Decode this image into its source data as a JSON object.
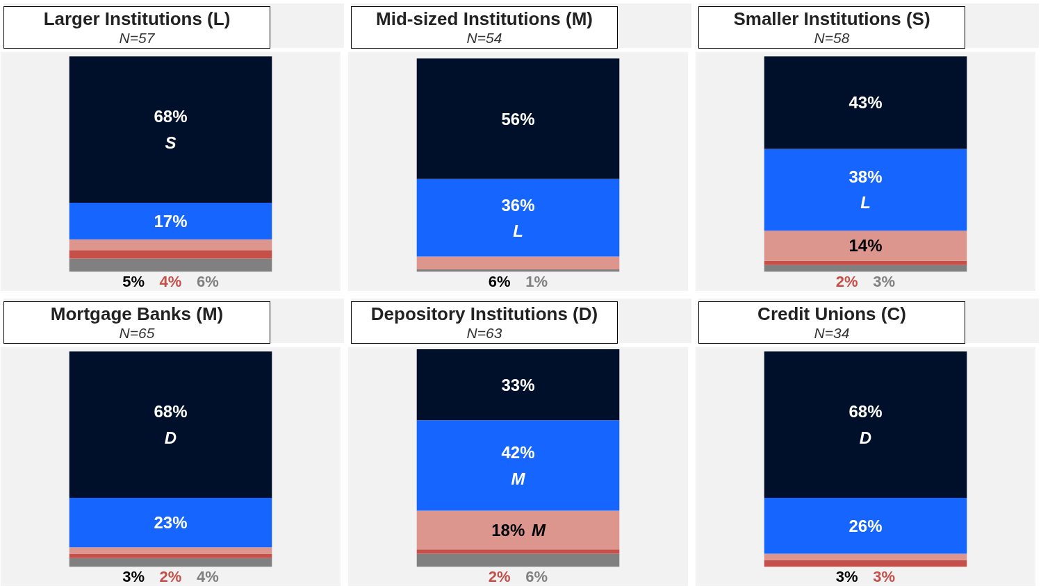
{
  "chart_data": [
    {
      "type": "bar",
      "stacked": true,
      "title": "Larger Institutions (L)",
      "subtitle": "N=57",
      "categories": [
        null
      ],
      "tick_labels": false,
      "series": [
        {
          "color": "#808080",
          "values": [
            6
          ],
          "value_labels": [
            "6%"
          ]
        },
        {
          "color": "#c5504a",
          "values": [
            4
          ],
          "value_labels": [
            "4%"
          ]
        },
        {
          "color": "#dc968e",
          "values": [
            5
          ],
          "value_labels": [
            "5%"
          ]
        },
        {
          "color": "#1565fe",
          "values": [
            17
          ],
          "value_labels": [
            "17%"
          ]
        },
        {
          "color": "#00102a",
          "values": [
            68
          ],
          "value_labels": [
            "68%\nS"
          ]
        }
      ]
    },
    {
      "type": "bar",
      "stacked": true,
      "title": "Mid-sized Institutions (M)",
      "subtitle": "N=54",
      "categories": [
        null
      ],
      "tick_labels": false,
      "series": [
        {
          "color": "#808080",
          "values": [
            1
          ],
          "value_labels": [
            "1%"
          ]
        },
        {
          "color": "#dc968e",
          "values": [
            6
          ],
          "value_labels": [
            "6%"
          ]
        },
        {
          "color": "#1565fe",
          "values": [
            36
          ],
          "value_labels": [
            "36%\nL"
          ]
        },
        {
          "color": "#00102a",
          "values": [
            56
          ],
          "value_labels": [
            "56%"
          ]
        }
      ]
    },
    {
      "type": "bar",
      "stacked": true,
      "title": "Smaller Institutions (S)",
      "subtitle": "N=58",
      "categories": [
        null
      ],
      "tick_labels": false,
      "series": [
        {
          "color": "#808080",
          "values": [
            3
          ],
          "value_labels": [
            "3%"
          ]
        },
        {
          "color": "#c5504a",
          "values": [
            2
          ],
          "value_labels": [
            "2%"
          ]
        },
        {
          "color": "#dc968e",
          "values": [
            14
          ],
          "value_labels": [
            "14%"
          ]
        },
        {
          "color": "#1565fe",
          "values": [
            38
          ],
          "value_labels": [
            "38%\nL"
          ]
        },
        {
          "color": "#00102a",
          "values": [
            43
          ],
          "value_labels": [
            "43%"
          ]
        }
      ]
    },
    {
      "type": "bar",
      "stacked": true,
      "title": "Mortgage Banks (M)",
      "subtitle": "N=65",
      "categories": [
        null
      ],
      "tick_labels": false,
      "series": [
        {
          "color": "#808080",
          "values": [
            4
          ],
          "value_labels": [
            "4%"
          ]
        },
        {
          "color": "#c5504a",
          "values": [
            2
          ],
          "value_labels": [
            "2%"
          ]
        },
        {
          "color": "#dc968e",
          "values": [
            3
          ],
          "value_labels": [
            "3%"
          ]
        },
        {
          "color": "#1565fe",
          "values": [
            23
          ],
          "value_labels": [
            "23%"
          ]
        },
        {
          "color": "#00102a",
          "values": [
            68
          ],
          "value_labels": [
            "68%\nD"
          ]
        }
      ]
    },
    {
      "type": "bar",
      "stacked": true,
      "title": "Depository Institutions (D)",
      "subtitle": "N=63",
      "categories": [
        null
      ],
      "tick_labels": false,
      "series": [
        {
          "color": "#808080",
          "values": [
            6
          ],
          "value_labels": [
            "6%"
          ]
        },
        {
          "color": "#c5504a",
          "values": [
            2
          ],
          "value_labels": [
            "2%"
          ]
        },
        {
          "color": "#dc968e",
          "values": [
            18
          ],
          "value_labels": [
            "18% M"
          ]
        },
        {
          "color": "#1565fe",
          "values": [
            42
          ],
          "value_labels": [
            "42%\nM"
          ]
        },
        {
          "color": "#00102a",
          "values": [
            33
          ],
          "value_labels": [
            "33%"
          ]
        }
      ]
    },
    {
      "type": "bar",
      "stacked": true,
      "title": "Credit Unions (C)",
      "subtitle": "N=34",
      "categories": [
        null
      ],
      "tick_labels": false,
      "series": [
        {
          "color": "#c5504a",
          "values": [
            3
          ],
          "value_labels": [
            "3%"
          ]
        },
        {
          "color": "#dc968e",
          "values": [
            3
          ],
          "value_labels": [
            "3%"
          ]
        },
        {
          "color": "#1565fe",
          "values": [
            26
          ],
          "value_labels": [
            "26%"
          ]
        },
        {
          "color": "#00102a",
          "values": [
            68
          ],
          "value_labels": [
            "68%\nD"
          ]
        }
      ]
    }
  ]
}
